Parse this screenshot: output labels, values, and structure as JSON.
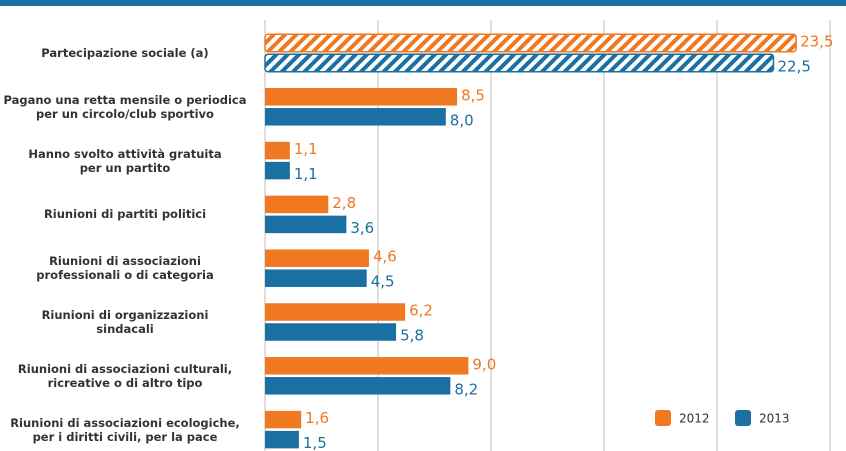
{
  "chart_data": {
    "type": "bar",
    "orientation": "horizontal",
    "categories": [
      "Partecipazione sociale (a)",
      "Pagano una retta mensile o periodica\nper un circolo/club sportivo",
      "Hanno svolto attività gratuita\nper un partito",
      "Riunioni di partiti politici",
      "Riunioni di associazioni\nprofessionali o di categoria",
      "Riunioni di organizzazioni\nsindacali",
      "Riunioni di associazioni culturali,\nricreative o di altro tipo",
      "Riunioni di associazioni ecologiche,\nper i diritti civili, per la pace"
    ],
    "hatched": [
      true,
      false,
      false,
      false,
      false,
      false,
      false,
      false
    ],
    "series": [
      {
        "name": "2012",
        "color": "#f07820",
        "values": [
          23.5,
          8.5,
          1.1,
          2.8,
          4.6,
          6.2,
          9.0,
          1.6
        ],
        "value_labels": [
          "23,5",
          "8,5",
          "1,1",
          "2,8",
          "4,6",
          "6,2",
          "9,0",
          "1,6"
        ]
      },
      {
        "name": "2013",
        "color": "#1a6fa3",
        "values": [
          22.5,
          8.0,
          1.1,
          3.6,
          4.5,
          5.8,
          8.2,
          1.5
        ],
        "value_labels": [
          "22,5",
          "8,0",
          "1,1",
          "3,6",
          "4,5",
          "5,8",
          "8,2",
          "1,5"
        ]
      }
    ],
    "xlim": [
      0,
      25
    ],
    "xticks": [
      0,
      5,
      10,
      15,
      20,
      25
    ],
    "grid": true,
    "legend": "lower right"
  }
}
